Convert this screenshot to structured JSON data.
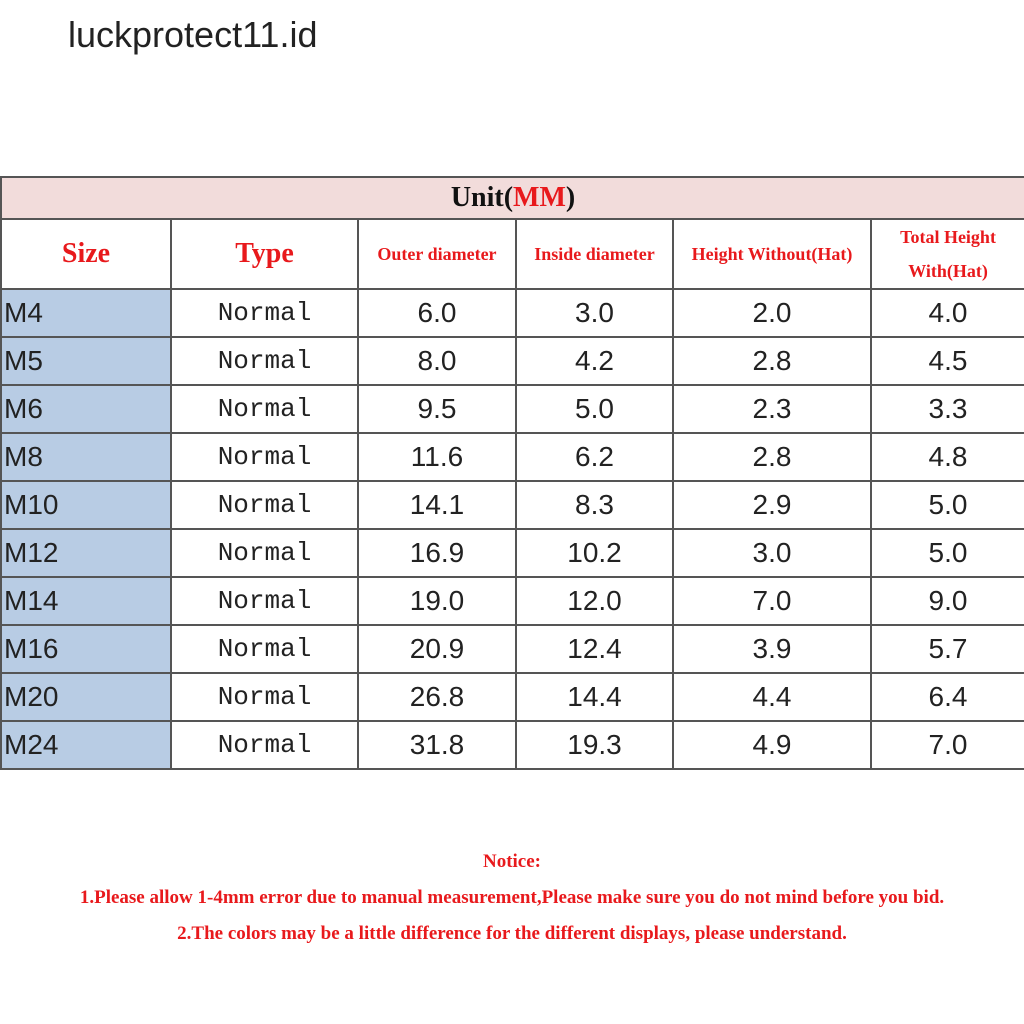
{
  "watermark": "luckprotect11.id",
  "table": {
    "title": [
      "Unit(",
      "MM",
      ")"
    ],
    "headers": [
      "Size",
      "Type",
      "Outer diameter",
      "Inside diameter",
      "Height Without(Hat)",
      "Total Height With(Hat)"
    ],
    "rows": [
      [
        "M4",
        "Normal",
        "6.0",
        "3.0",
        "2.0",
        "4.0"
      ],
      [
        "M5",
        "Normal",
        "8.0",
        "4.2",
        "2.8",
        "4.5"
      ],
      [
        "M6",
        "Normal",
        "9.5",
        "5.0",
        "2.3",
        "3.3"
      ],
      [
        "M8",
        "Normal",
        "11.6",
        "6.2",
        "2.8",
        "4.8"
      ],
      [
        "M10",
        "Normal",
        "14.1",
        "8.3",
        "2.9",
        "5.0"
      ],
      [
        "M12",
        "Normal",
        "16.9",
        "10.2",
        "3.0",
        "5.0"
      ],
      [
        "M14",
        "Normal",
        "19.0",
        "12.0",
        "7.0",
        "9.0"
      ],
      [
        "M16",
        "Normal",
        "20.9",
        "12.4",
        "3.9",
        "5.7"
      ],
      [
        "M20",
        "Normal",
        "26.8",
        "14.4",
        "4.4",
        "6.4"
      ],
      [
        "M24",
        "Normal",
        "31.8",
        "19.3",
        "4.9",
        "7.0"
      ]
    ]
  },
  "notice": {
    "title": "Notice:",
    "lines": [
      "1.Please allow 1-4mm error due to manual measurement,Please make sure you do not mind before you bid.",
      "2.The colors may be a little difference for the different displays, please understand."
    ]
  }
}
